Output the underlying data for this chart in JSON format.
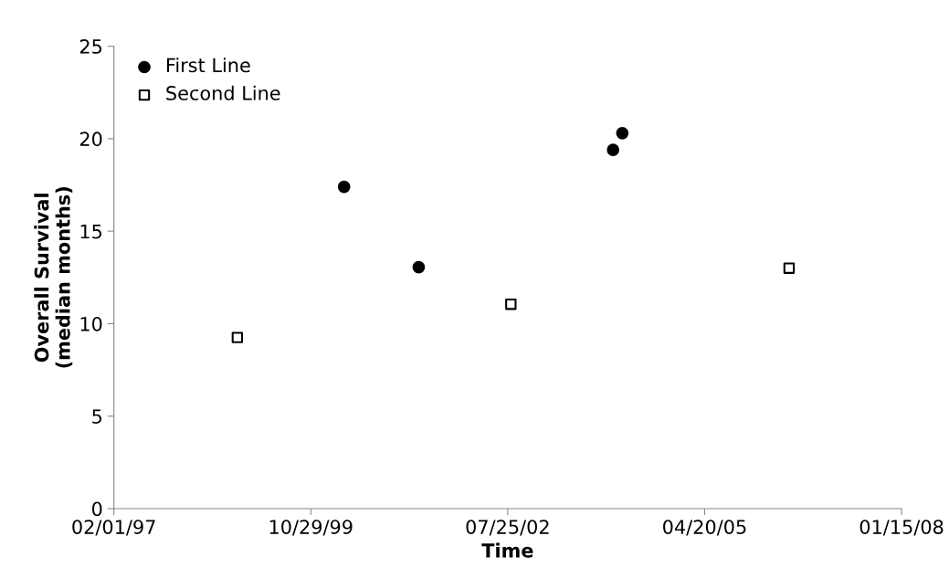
{
  "chart_data": {
    "type": "scatter",
    "xlabel": "Time",
    "ylabel": "Overall Survival\n(median months)",
    "xlim": [
      "1997-02-01",
      "2008-01-15"
    ],
    "xticks": [
      {
        "value": "1997-02-01",
        "label": "02/01/97"
      },
      {
        "value": "1999-10-29",
        "label": "10/29/99"
      },
      {
        "value": "2002-07-25",
        "label": "07/25/02"
      },
      {
        "value": "2005-04-20",
        "label": "04/20/05"
      },
      {
        "value": "2008-01-15",
        "label": "01/15/08"
      }
    ],
    "ylim": [
      0,
      25
    ],
    "yticks": [
      0,
      5,
      10,
      15,
      20,
      25
    ],
    "grid": false,
    "legend": "top left",
    "series": [
      {
        "name": "First Line",
        "color": "#000000",
        "marker": "circle",
        "x": [
          "2000-04-15",
          "2001-04-29",
          "2004-01-11",
          "2004-02-27"
        ],
        "values": [
          17.4,
          13.05,
          19.4,
          20.3
        ]
      },
      {
        "name": "Second Line",
        "color": "#000000",
        "marker": "square",
        "x": [
          "1998-10-21",
          "2002-08-10",
          "2006-06-23"
        ],
        "values": [
          9.25,
          11.05,
          13.0
        ]
      }
    ]
  }
}
